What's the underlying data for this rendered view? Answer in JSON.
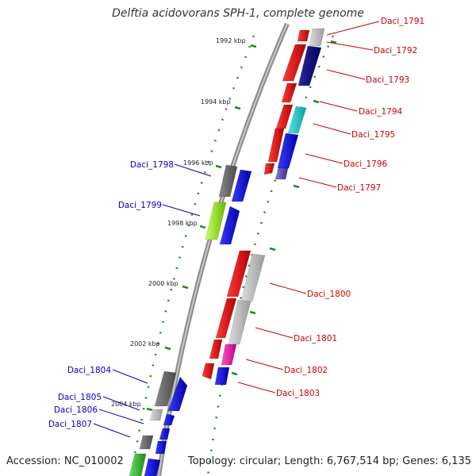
{
  "title": "Delftia acidovorans SPH-1, complete genome",
  "footer": {
    "accession": "Accession: NC_010002",
    "topology": "Topology: circular; Length: 6,767,514 bp; Genes: 6,135"
  },
  "scale_labels": [
    "1992 kbp",
    "1994 kbp",
    "1996 kbp",
    "1998 kbp",
    "2000 kbp",
    "2002 kbp",
    "2004 kbp"
  ],
  "genes_right": [
    {
      "name": "Daci_1791"
    },
    {
      "name": "Daci_1792"
    },
    {
      "name": "Daci_1793"
    },
    {
      "name": "Daci_1794"
    },
    {
      "name": "Daci_1795"
    },
    {
      "name": "Daci_1796"
    },
    {
      "name": "Daci_1797"
    },
    {
      "name": "Daci_1800"
    },
    {
      "name": "Daci_1801"
    },
    {
      "name": "Daci_1802"
    },
    {
      "name": "Daci_1803"
    }
  ],
  "genes_left": [
    {
      "name": "Daci_1798"
    },
    {
      "name": "Daci_1799"
    },
    {
      "name": "Daci_1804"
    },
    {
      "name": "Daci_1805"
    },
    {
      "name": "Daci_1806"
    },
    {
      "name": "Daci_1807"
    }
  ],
  "colors": {
    "right_label": "#cc0000",
    "left_label": "#0000cc",
    "scale": "#228b22",
    "backbone": "#888888"
  }
}
